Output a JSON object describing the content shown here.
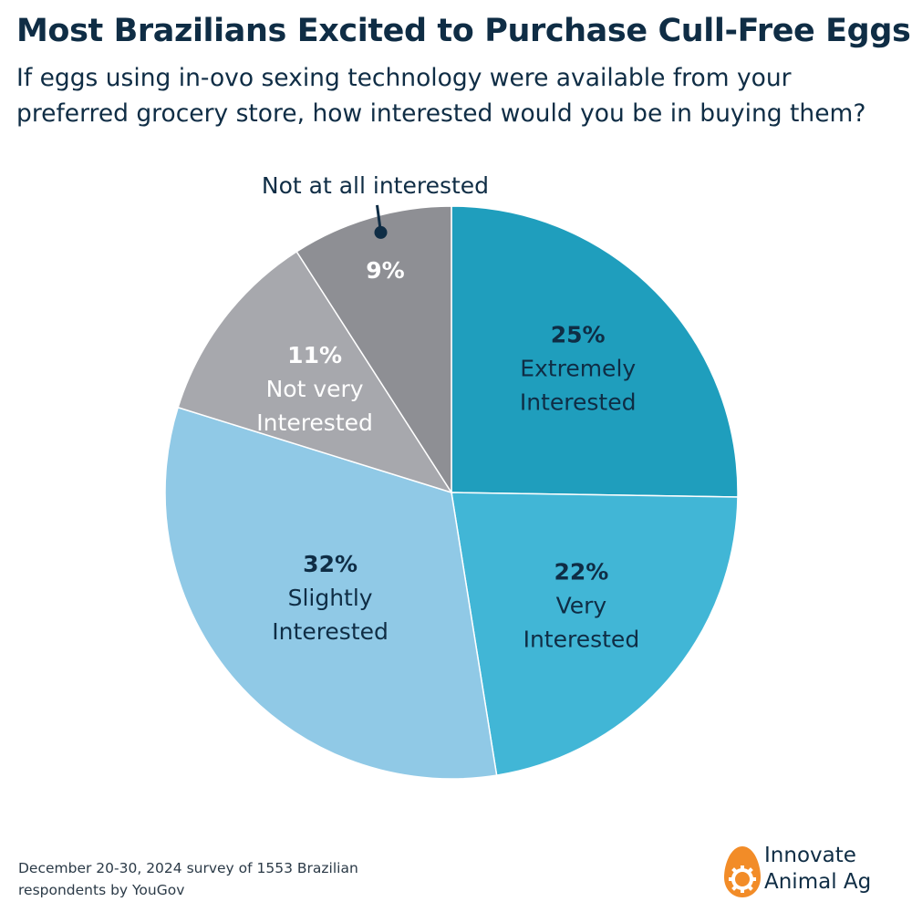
{
  "header": {
    "title": "Most Brazilians Excited to Purchase Cull-Free Eggs",
    "subtitle_line1": "If eggs using in-ovo sexing technology were available from your",
    "subtitle_line2": "preferred grocery store, how interested would you be in buying them?"
  },
  "chart_data": {
    "type": "pie",
    "legend": "none",
    "slices": [
      {
        "pct_label": "25%",
        "value": 25,
        "label_lines": [
          "Extremely",
          "Interested"
        ],
        "color": "#1f9ebd",
        "text_color": "#0f2d45"
      },
      {
        "pct_label": "22%",
        "value": 22,
        "label_lines": [
          "Very",
          "Interested"
        ],
        "color": "#41b6d6",
        "text_color": "#0f2d45"
      },
      {
        "pct_label": "32%",
        "value": 32,
        "label_lines": [
          "Slightly",
          "Interested"
        ],
        "color": "#90c9e6",
        "text_color": "#0f2d45"
      },
      {
        "pct_label": "11%",
        "value": 11,
        "label_lines": [
          "Not very",
          "Interested"
        ],
        "color": "#a7a8ad",
        "text_color": "#ffffff"
      },
      {
        "pct_label": "9%",
        "value": 9,
        "label_lines": [
          "Not at all interested"
        ],
        "color": "#8e8f94",
        "text_color": "#ffffff",
        "label_outside": true
      }
    ]
  },
  "footer": {
    "source_line1": "December 20-30, 2024 survey of 1553 Brazilian",
    "source_line2": "respondents by YouGov"
  },
  "brand": {
    "line1": "Innovate",
    "line2": "Animal Ag",
    "logo_icon": "egg-gear-icon",
    "logo_color": "#f28c28"
  }
}
